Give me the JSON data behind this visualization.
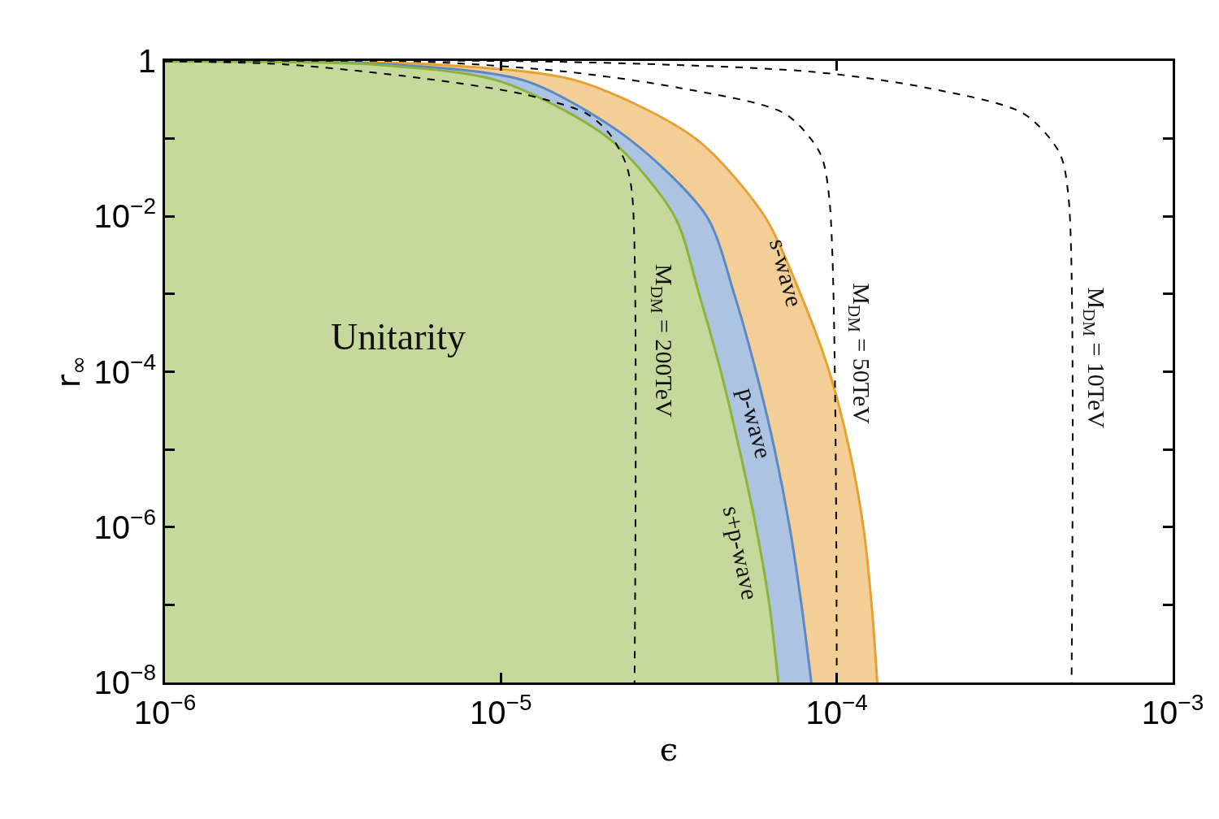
{
  "chart_data": {
    "type": "area",
    "xlabel": "ϵ",
    "ylabel": "r$_{∞}$",
    "log": "xy",
    "xlim": [
      1e-06,
      0.001
    ],
    "xticks": [
      {
        "value": 1e-06,
        "label": "10$^{−6}$"
      },
      {
        "value": 1e-05,
        "label": "10$^{−5}$"
      },
      {
        "value": 0.0001,
        "label": "10$^{−4}$"
      },
      {
        "value": 0.001,
        "label": "10$^{−3}$"
      }
    ],
    "ylim": [
      1e-08,
      1
    ],
    "yticks": [
      {
        "value": 1e-08,
        "label": "10$^{−8}$"
      },
      {
        "value": 1e-07,
        "label": null
      },
      {
        "value": 1e-06,
        "label": "10$^{−6}$"
      },
      {
        "value": 1e-05,
        "label": null
      },
      {
        "value": 0.0001,
        "label": "10$^{−4}$"
      },
      {
        "value": 0.001,
        "label": null
      },
      {
        "value": 0.01,
        "label": "10$^{−2}$"
      },
      {
        "value": 0.1,
        "label": null
      },
      1
    ],
    "series": [
      {
        "color": "#e8a030",
        "x": [
          1e-06,
          6.6e-06,
          1.7e-05,
          3.8e-05,
          6.1e-05,
          7.8e-05,
          9.5e-05,
          0.000109,
          0.00012,
          0.000127,
          0.000132
        ],
        "values": [
          0.98,
          0.89,
          0.55,
          0.1,
          0.01,
          0.001,
          0.0001,
          1e-05,
          1e-06,
          1e-07,
          1e-08
        ]
      },
      {
        "color": "#5b88c6",
        "x": [
          1e-06,
          4.9e-06,
          1.19e-05,
          2.4e-05,
          4.1e-05,
          4.95e-05,
          5.75e-05,
          6.53e-05,
          7.24e-05,
          7.85e-05,
          8.4e-05
        ],
        "values": [
          0.98,
          0.89,
          0.55,
          0.1,
          0.01,
          0.001,
          0.0001,
          1e-05,
          1e-06,
          1e-07,
          1e-08
        ]
      },
      {
        "color": "#8db33a",
        "x": [
          1e-06,
          4.3e-06,
          9.9e-06,
          2.1e-05,
          3.29e-05,
          3.89e-05,
          4.52e-05,
          5.13e-05,
          5.75e-05,
          6.3e-05,
          6.7e-05
        ],
        "values": [
          0.98,
          0.89,
          0.55,
          0.1,
          0.01,
          0.001,
          0.0001,
          1e-05,
          1e-06,
          1e-07,
          1e-08
        ]
      },
      {
        "type": "line",
        "line_style": "dashed",
        "color": "#000000",
        "x": [
          1e-06,
          2.3e-06,
          5.8e-06,
          1.18e-05,
          1.8e-05,
          2.1e-05,
          2.35e-05,
          2.46e-05,
          2.5e-05
        ],
        "values": [
          0.99,
          0.9,
          0.6,
          0.37,
          0.21,
          0.117,
          0.049,
          0.019,
          1e-08
        ]
      },
      {
        "type": "line",
        "line_style": "dashed",
        "color": "#000000",
        "x": [
          1e-06,
          5.8e-06,
          1.55e-05,
          3.4e-05,
          7e-05,
          8.9e-05,
          9.5e-05,
          0.0001
        ],
        "values": [
          0.995,
          0.98,
          0.73,
          0.45,
          0.21,
          0.066,
          0.017,
          1e-08
        ]
      },
      {
        "type": "line",
        "line_style": "dashed",
        "color": "#000000",
        "x": [
          1e-06,
          1.4e-05,
          8.3e-05,
          0.000186,
          0.00036,
          0.00046,
          0.00049,
          0.0005
        ],
        "values": [
          0.999,
          0.98,
          0.73,
          0.45,
          0.21,
          0.066,
          0.017,
          1e-08
        ]
      }
    ],
    "annotations": [
      "Unitarity",
      "M$_{DM}$ = 200TeV",
      "s-wave",
      "p-wave",
      "s+p-wave",
      "M$_{DM}$ = 50TeV",
      "M$_{DM}$ = 10TeV"
    ]
  }
}
